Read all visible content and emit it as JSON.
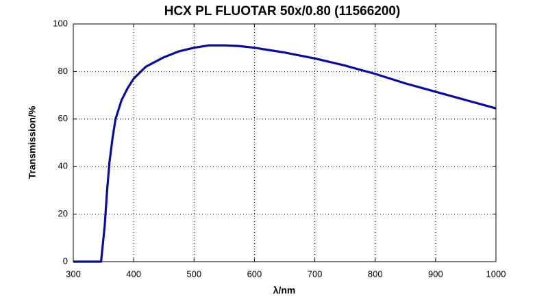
{
  "chart_data": {
    "type": "line",
    "title": "HCX PL FLUOTAR 50x/0.80 (11566200)",
    "x_label": "λ/nm",
    "y_label": "Transmission/%",
    "x": [
      300,
      346,
      352,
      356,
      360,
      365,
      370,
      380,
      390,
      400,
      420,
      450,
      475,
      500,
      525,
      550,
      575,
      600,
      650,
      700,
      750,
      800,
      850,
      900,
      950,
      1000
    ],
    "series": [
      {
        "name": "Transmission",
        "color": "#0a0aa0",
        "values": [
          0,
          0,
          15,
          30,
          42,
          52,
          60,
          68,
          73,
          77,
          82,
          86,
          88.5,
          90,
          91,
          91,
          90.7,
          90,
          88,
          85.5,
          82.5,
          79,
          75,
          71.5,
          68,
          64.5
        ]
      }
    ],
    "xlim": [
      300,
      1000
    ],
    "xticks": [
      300,
      400,
      500,
      600,
      700,
      800,
      900,
      1000
    ],
    "ylim": [
      0,
      100
    ],
    "yticks": [
      0,
      20,
      40,
      60,
      80,
      100
    ],
    "grid": true
  }
}
